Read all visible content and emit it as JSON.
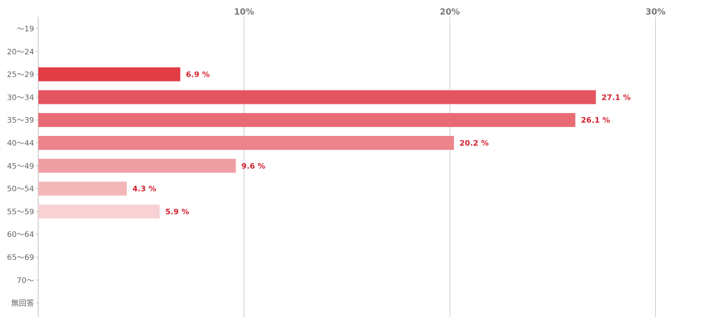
{
  "chart_data": {
    "type": "bar",
    "orientation": "horizontal",
    "categories": [
      "〜19",
      "20〜24",
      "25〜29",
      "30〜34",
      "35〜39",
      "40〜44",
      "45〜49",
      "50〜54",
      "55〜59",
      "60〜64",
      "65〜69",
      "70〜",
      "無回答"
    ],
    "values": [
      null,
      null,
      6.9,
      27.1,
      26.1,
      20.2,
      9.6,
      4.3,
      5.9,
      null,
      null,
      null,
      null
    ],
    "value_labels": [
      "",
      "",
      "6.9 %",
      "27.1 %",
      "26.1 %",
      "20.2 %",
      "9.6 %",
      "4.3 %",
      "5.9 %",
      "",
      "",
      "",
      ""
    ],
    "xlim": [
      0,
      33
    ],
    "x_ticks": [
      10,
      20,
      30
    ],
    "x_tick_labels": [
      "10%",
      "20%",
      "30%"
    ],
    "x_axis_position": "top",
    "grid": true,
    "title": "",
    "xlabel": "",
    "ylabel": "",
    "bar_colors": [
      "#e23c47",
      "#e23c47",
      "#e23c47",
      "#e55560",
      "#e86b74",
      "#eb848b",
      "#ef9ea4",
      "#f3b7b9",
      "#f7d1d3",
      "#f7d1d3",
      "#f7d1d3",
      "#f7d1d3",
      "#f7d1d3"
    ],
    "value_label_color": "#d3202f",
    "grid_color": "#cccccc",
    "axis_color": "#bbbbbb"
  }
}
